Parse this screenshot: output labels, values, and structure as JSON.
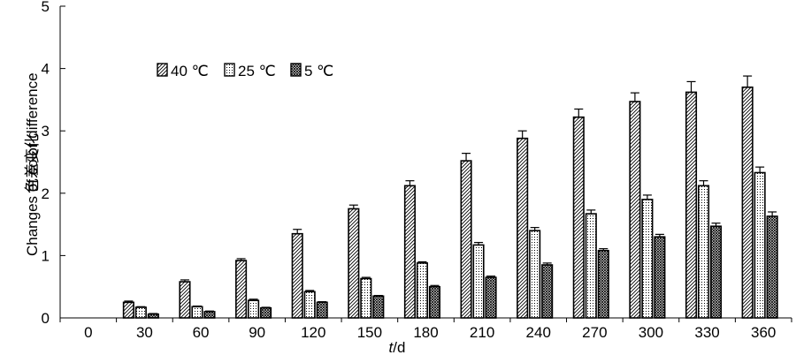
{
  "chart_data": {
    "type": "bar",
    "title": "",
    "xlabel_italic": "t",
    "xlabel_rest": "/d",
    "ylabel_cn": "色差变化",
    "ylabel_en": "Changes of color difference",
    "ylim": [
      0,
      5
    ],
    "yticks": [
      "0",
      "1",
      "2",
      "3",
      "4",
      "5"
    ],
    "categories": [
      "0",
      "30",
      "60",
      "90",
      "120",
      "150",
      "180",
      "210",
      "240",
      "270",
      "300",
      "330",
      "360"
    ],
    "legend_position": "upper-left inside plot",
    "series": [
      {
        "name": "40 ℃",
        "pattern": "diagonal-hatch",
        "values": [
          0,
          0.25,
          0.58,
          0.92,
          1.35,
          1.75,
          2.12,
          2.52,
          2.88,
          3.22,
          3.47,
          3.62,
          3.7
        ],
        "errors": [
          0,
          0.02,
          0.03,
          0.03,
          0.07,
          0.06,
          0.08,
          0.12,
          0.12,
          0.13,
          0.14,
          0.17,
          0.18
        ]
      },
      {
        "name": "25 ℃",
        "pattern": "dotted",
        "values": [
          0,
          0.17,
          0.18,
          0.28,
          0.42,
          0.63,
          0.88,
          1.17,
          1.4,
          1.67,
          1.9,
          2.12,
          2.33
        ],
        "errors": [
          0,
          0.01,
          0.01,
          0.02,
          0.02,
          0.02,
          0.02,
          0.04,
          0.05,
          0.06,
          0.07,
          0.08,
          0.09
        ]
      },
      {
        "name": "5 ℃",
        "pattern": "dense-cross-hatch",
        "values": [
          0,
          0.06,
          0.1,
          0.16,
          0.25,
          0.35,
          0.5,
          0.65,
          0.85,
          1.08,
          1.3,
          1.47,
          1.63
        ],
        "errors": [
          0,
          0.01,
          0.01,
          0.01,
          0.01,
          0.01,
          0.02,
          0.02,
          0.03,
          0.03,
          0.04,
          0.05,
          0.07
        ]
      }
    ]
  }
}
